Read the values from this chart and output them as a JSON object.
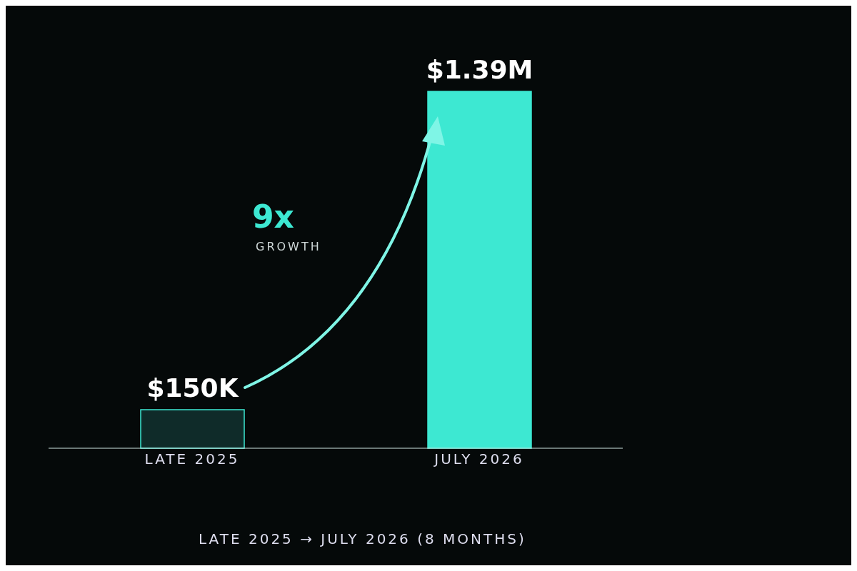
{
  "chart_data": {
    "type": "bar",
    "categories": [
      "LATE 2025",
      "JULY 2026"
    ],
    "values": [
      150000,
      1390000
    ],
    "colors": [
      "#0f2b29",
      "#3de8d2"
    ],
    "value_labels": [
      "$150K",
      "$1.39M"
    ],
    "annotations": [
      "9x",
      "GROWTH",
      "LATE 2025 → JULY 2026 (8 MONTHS)"
    ]
  }
}
